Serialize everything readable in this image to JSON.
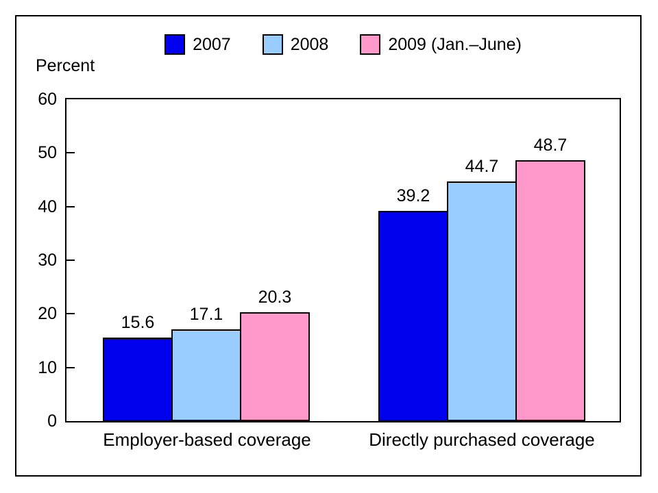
{
  "chart_data": {
    "type": "bar",
    "title": "",
    "ylabel": "Percent",
    "xlabel": "",
    "categories": [
      "Employer-based coverage",
      "Directly purchased coverage"
    ],
    "series": [
      {
        "name": "2007",
        "color": "#0000EE",
        "values": [
          15.6,
          39.2
        ]
      },
      {
        "name": "2008",
        "color": "#99CCFF",
        "values": [
          17.1,
          44.7
        ]
      },
      {
        "name": "2009 (Jan.–June)",
        "color": "#FF99CC",
        "values": [
          20.3,
          48.7
        ]
      }
    ],
    "ylim": [
      0,
      60
    ],
    "yticks": [
      0,
      10,
      20,
      30,
      40,
      50,
      60
    ],
    "grid": false,
    "legend_position": "top",
    "bar_value_labels": true,
    "value_labels": [
      [
        "15.6",
        "17.1",
        "20.3"
      ],
      [
        "39.2",
        "44.7",
        "48.7"
      ]
    ]
  }
}
